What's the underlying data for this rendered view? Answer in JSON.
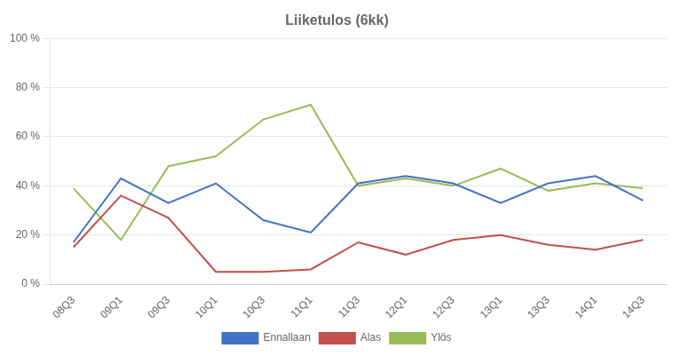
{
  "chart_data": {
    "type": "line",
    "title": "Liiketulos (6kk)",
    "categories": [
      "08Q3",
      "09Q1",
      "09Q3",
      "10Q1",
      "10Q3",
      "11Q1",
      "11Q3",
      "12Q1",
      "12Q3",
      "13Q1",
      "13Q3",
      "14Q1",
      "14Q3"
    ],
    "series": [
      {
        "name": "Ennallaan",
        "color": "#4472C4",
        "marker": "none",
        "values": [
          0.17,
          0.43,
          0.33,
          0.41,
          0.26,
          0.21,
          0.41,
          0.44,
          0.41,
          0.33,
          0.41,
          0.44,
          0.34
        ]
      },
      {
        "name": "Alas",
        "color": "#C0504D",
        "marker": "none",
        "values": [
          0.15,
          0.36,
          0.27,
          0.05,
          0.05,
          0.06,
          0.17,
          0.12,
          0.18,
          0.2,
          0.16,
          0.14,
          0.18
        ]
      },
      {
        "name": "Ylös",
        "color": "#9BBB59",
        "marker": "none",
        "values": [
          0.39,
          0.18,
          0.48,
          0.52,
          0.67,
          0.73,
          0.4,
          0.43,
          0.4,
          0.47,
          0.38,
          0.41,
          0.39
        ]
      }
    ],
    "ylim": [
      0,
      1.0
    ],
    "yticks": [
      {
        "value": 0,
        "label": "0 %"
      },
      {
        "value": 0.2,
        "label": "20 %"
      },
      {
        "value": 0.4,
        "label": "40 %"
      },
      {
        "value": 0.6,
        "label": "60 %"
      },
      {
        "value": 0.8,
        "label": "80 %"
      },
      {
        "value": 1.0,
        "label": "100 %"
      }
    ],
    "grid": "y",
    "legend": "bottom"
  }
}
